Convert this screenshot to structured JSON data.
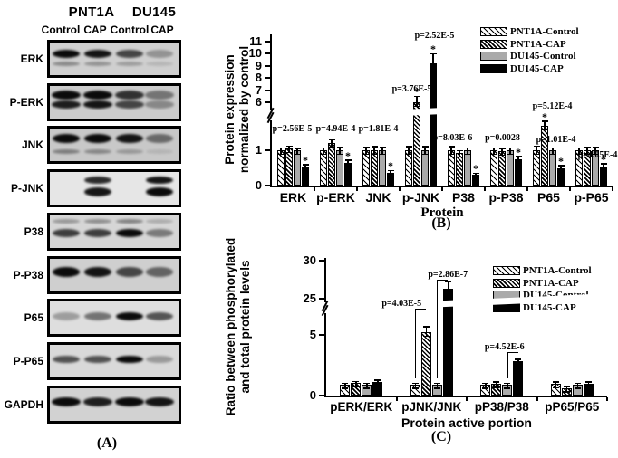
{
  "panel_a": {
    "panel_label": "(A)",
    "cell_lines": [
      "PNT1A",
      "DU145"
    ],
    "lane_labels": [
      "Control",
      "CAP",
      "Control",
      "CAP"
    ],
    "rows": [
      {
        "label": "ERK",
        "bg": "#cfcfcf",
        "bands": [
          {
            "y": 8,
            "h": 9,
            "lanes": [
              1,
              0.95,
              0.7,
              0.3
            ]
          },
          {
            "y": 21,
            "h": 5,
            "lanes": [
              0.35,
              0.3,
              0.25,
              0.12
            ]
          }
        ]
      },
      {
        "label": "P-ERK",
        "bg": "#cbcbcb",
        "bands": [
          {
            "y": 5,
            "h": 10,
            "w": 32,
            "lanes": [
              1,
              1,
              0.8,
              0.45
            ]
          },
          {
            "y": 16,
            "h": 9,
            "w": 32,
            "lanes": [
              0.9,
              0.95,
              0.7,
              0.35
            ]
          }
        ]
      },
      {
        "label": "JNK",
        "bg": "#c8c8c8",
        "bands": [
          {
            "y": 6,
            "h": 10,
            "lanes": [
              1,
              1,
              0.95,
              0.5
            ]
          },
          {
            "y": 23,
            "h": 5,
            "lanes": [
              0.4,
              0.35,
              0.25,
              0.1
            ]
          }
        ]
      },
      {
        "label": "P-JNK",
        "bg": "#e6e6e6",
        "bands": [
          {
            "y": 5,
            "h": 8,
            "lanes": [
              0,
              0.85,
              0,
              0.95
            ]
          },
          {
            "y": 17,
            "h": 10,
            "lanes": [
              0,
              0.95,
              0,
              1
            ]
          }
        ]
      },
      {
        "label": "P38",
        "bg": "#d6d6d6",
        "bands": [
          {
            "y": 4,
            "h": 5,
            "lanes": [
              0.3,
              0.35,
              0.4,
              0.2
            ]
          },
          {
            "y": 15,
            "h": 9,
            "lanes": [
              0.75,
              0.75,
              1,
              0.45
            ]
          }
        ]
      },
      {
        "label": "P-P38",
        "bg": "#cfcfcf",
        "bands": [
          {
            "y": 9,
            "h": 11,
            "lanes": [
              1,
              0.95,
              0.7,
              0.55
            ]
          }
        ]
      },
      {
        "label": "P65",
        "bg": "#dedede",
        "bands": [
          {
            "y": 12,
            "h": 9,
            "lanes": [
              0.3,
              0.5,
              1,
              0.65
            ]
          }
        ]
      },
      {
        "label": "P-P65",
        "bg": "#d9d9d9",
        "bands": [
          {
            "y": 12,
            "h": 8,
            "lanes": [
              0.65,
              0.65,
              1,
              0.3
            ]
          }
        ]
      },
      {
        "label": "GAPDH",
        "bg": "#d2d2d2",
        "bands": [
          {
            "y": 10,
            "h": 10,
            "w": 32,
            "lanes": [
              1,
              0.9,
              1,
              0.95
            ]
          }
        ]
      }
    ]
  },
  "chart_data": [
    {
      "id": "B",
      "panel_label": "(B)",
      "type": "bar",
      "title": "",
      "xlabel": "Protein",
      "ylabel_lines": [
        "Protein expression",
        "normalized by control"
      ],
      "categories": [
        "ERK",
        "p-ERK",
        "JNK",
        "p-JNK",
        "P38",
        "p-P38",
        "P65",
        "p-P65"
      ],
      "y_ticks": [
        0,
        1,
        6,
        7,
        8,
        9,
        10,
        11
      ],
      "ylim": [
        0,
        11.6
      ],
      "axis_break": [
        2,
        6
      ],
      "grid": false,
      "legend_position": "upper-right",
      "series": [
        {
          "name": "PNT1A-Control",
          "values": [
            1,
            1,
            1,
            1,
            1,
            1,
            1,
            1
          ],
          "errors": [
            0.04,
            0.05,
            0.07,
            0.08,
            0.08,
            0.04,
            0.09,
            0.05
          ]
        },
        {
          "name": "PNT1A-CAP",
          "values": [
            1.05,
            1.2,
            1.0,
            5.9,
            0.92,
            0.97,
            1.7,
            1.0
          ],
          "errors": [
            0.04,
            0.08,
            0.08,
            0.5,
            0.05,
            0.05,
            0.1,
            0.06
          ]
        },
        {
          "name": "DU145-Control",
          "values": [
            1,
            1,
            1,
            1,
            1,
            1,
            1,
            1
          ],
          "errors": [
            0.03,
            0.06,
            0.07,
            0.08,
            0.04,
            0.05,
            0.05,
            0.07
          ]
        },
        {
          "name": "DU145-CAP",
          "values": [
            0.52,
            0.65,
            0.37,
            9.2,
            0.3,
            0.75,
            0.5,
            0.55
          ],
          "errors": [
            0.05,
            0.05,
            0.04,
            0.75,
            0.03,
            0.05,
            0.05,
            0.04
          ]
        }
      ],
      "annotations": [
        {
          "text": "p=2.56E-5",
          "category": "ERK",
          "series": "DU145-CAP"
        },
        {
          "text": "p=4.94E-4",
          "category": "p-ERK",
          "series": "DU145-CAP"
        },
        {
          "text": "p=1.81E-4",
          "category": "JNK",
          "series": "DU145-CAP"
        },
        {
          "text": "p=3.76E-5",
          "category": "p-JNK",
          "series": "PNT1A-CAP"
        },
        {
          "text": "p=2.52E-5",
          "category": "p-JNK",
          "series": "DU145-CAP"
        },
        {
          "text": "p=8.03E-6",
          "category": "P38",
          "series": "DU145-CAP"
        },
        {
          "text": "p=0.0028",
          "category": "p-P38",
          "series": "DU145-CAP"
        },
        {
          "text": "p=5.12E-4",
          "category": "P65",
          "series": "PNT1A-CAP"
        },
        {
          "text": "p=1.01E-4",
          "category": "P65",
          "series": "DU145-CAP"
        },
        {
          "text": "p=4.05E-4",
          "category": "p-P65",
          "series": "DU145-CAP"
        }
      ],
      "significance_marks": [
        {
          "category": "ERK",
          "series": "DU145-CAP"
        },
        {
          "category": "p-ERK",
          "series": "DU145-CAP"
        },
        {
          "category": "JNK",
          "series": "DU145-CAP"
        },
        {
          "category": "p-JNK",
          "series": "PNT1A-CAP"
        },
        {
          "category": "p-JNK",
          "series": "DU145-CAP"
        },
        {
          "category": "P38",
          "series": "DU145-CAP"
        },
        {
          "category": "p-P38",
          "series": "DU145-CAP"
        },
        {
          "category": "P65",
          "series": "PNT1A-CAP"
        },
        {
          "category": "P65",
          "series": "DU145-CAP"
        },
        {
          "category": "p-P65",
          "series": "DU145-CAP"
        }
      ]
    },
    {
      "id": "C",
      "panel_label": "(C)",
      "type": "bar",
      "title": "",
      "xlabel": "Protein active portion",
      "ylabel_lines": [
        "Ratio between phosphorylated",
        "and total protein levels"
      ],
      "categories": [
        "pERK/ERK",
        "pJNK/JNK",
        "pP38/P38",
        "pP65/P65"
      ],
      "y_ticks": [
        0,
        5,
        25,
        30
      ],
      "ylim": [
        0,
        31
      ],
      "axis_break": [
        5,
        25
      ],
      "grid": false,
      "legend_position": "upper-right",
      "series": [
        {
          "name": "PNT1A-Control",
          "values": [
            0.9,
            0.9,
            0.9,
            0.97
          ],
          "errors": [
            0.06,
            0.07,
            0.05,
            0.08
          ]
        },
        {
          "name": "PNT1A-CAP",
          "values": [
            1.05,
            6.3,
            1.0,
            0.6
          ],
          "errors": [
            0.05,
            0.45,
            0.06,
            0.05
          ]
        },
        {
          "name": "DU145-Control",
          "values": [
            0.9,
            0.9,
            0.9,
            0.9
          ],
          "errors": [
            0.05,
            0.07,
            0.05,
            0.05
          ]
        },
        {
          "name": "DU145-CAP",
          "values": [
            1.15,
            26.3,
            2.8,
            1.0
          ],
          "errors": [
            0.06,
            0.8,
            0.12,
            0.05
          ]
        }
      ],
      "annotations": [
        {
          "text": "p=4.03E-5",
          "category": "pJNK/JNK",
          "series": "PNT1A-CAP"
        },
        {
          "text": "p=2.86E-7",
          "category": "pJNK/JNK",
          "series": "DU145-CAP"
        },
        {
          "text": "p=4.52E-6",
          "category": "pP38/P38",
          "series": "DU145-CAP"
        }
      ],
      "significance_marks": []
    }
  ]
}
